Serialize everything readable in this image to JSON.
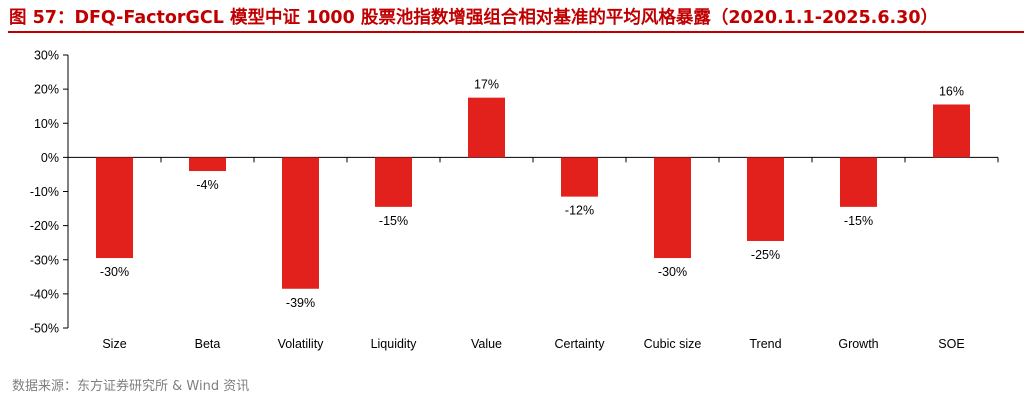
{
  "header": {
    "title": "图 57：DFQ-FactorGCL 模型中证 1000 股票池指数增强组合相对基准的平均风格暴露（2020.1.1-2025.6.30）"
  },
  "footer": {
    "source": "数据来源：东方证券研究所 & Wind 资讯"
  },
  "chart_data": {
    "type": "bar",
    "categories": [
      "Size",
      "Beta",
      "Volatility",
      "Liquidity",
      "Value",
      "Certainty",
      "Cubic size",
      "Trend",
      "Growth",
      "SOE"
    ],
    "values": [
      -0.295,
      -0.04,
      -0.385,
      -0.145,
      0.175,
      -0.115,
      -0.295,
      -0.245,
      -0.145,
      0.155
    ],
    "data_labels": [
      "-30%",
      "-4%",
      "-39%",
      "-15%",
      "17%",
      "-12%",
      "-30%",
      "-25%",
      "-15%",
      "16%"
    ],
    "ylim": [
      -0.5,
      0.3
    ],
    "yticks": [
      0.3,
      0.2,
      0.1,
      0,
      -0.1,
      -0.2,
      -0.3,
      -0.4,
      -0.5
    ],
    "ytick_labels": [
      "30%",
      "20%",
      "10%",
      "0%",
      "-10%",
      "-20%",
      "-30%",
      "-40%",
      "-50%"
    ],
    "bar_color": "#e3211c",
    "grid": false,
    "legend": "none"
  },
  "colors": {
    "title": "#c00000",
    "bar": "#e3211c",
    "source": "#7f7f7f"
  }
}
